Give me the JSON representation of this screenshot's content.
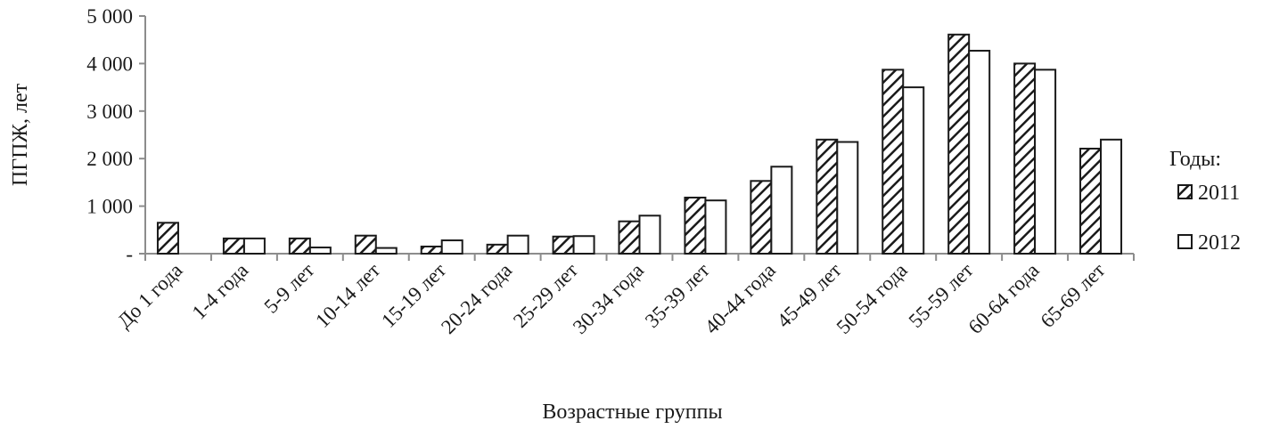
{
  "chart_data": {
    "type": "bar",
    "title": "",
    "xlabel": "Возрастные группы",
    "ylabel": "ПГПЖ, лет",
    "ylim": [
      0,
      5000
    ],
    "yticks": [
      "-",
      "1 000",
      "2 000",
      "3 000",
      "4 000",
      "5 000"
    ],
    "grid": false,
    "legend_position": "right",
    "legend_title": "Годы:",
    "categories": [
      "До 1 года",
      "1-4 года",
      "5-9 лет",
      "10-14 лет",
      "15-19 лет",
      "20-24 года",
      "25-29 лет",
      "30-34 года",
      "35-39 лет",
      "40-44 года",
      "45-49 лет",
      "50-54 года",
      "55-59 лет",
      "60-64 года",
      "65-69 лет"
    ],
    "series": [
      {
        "name": "2011",
        "pattern": "hatched",
        "values": [
          650,
          320,
          320,
          380,
          150,
          190,
          360,
          680,
          1180,
          1530,
          2400,
          3870,
          4610,
          4000,
          2210
        ]
      },
      {
        "name": "2012",
        "pattern": "white",
        "values": [
          0,
          320,
          130,
          120,
          280,
          380,
          370,
          800,
          1120,
          1830,
          2350,
          3500,
          4270,
          3870,
          2400
        ]
      }
    ]
  },
  "colors": {
    "axis": "#8c8c8c",
    "bar_stroke": "#1a1a1a",
    "hatch": "#1a1a1a",
    "bar_fill_2012": "#ffffff"
  }
}
